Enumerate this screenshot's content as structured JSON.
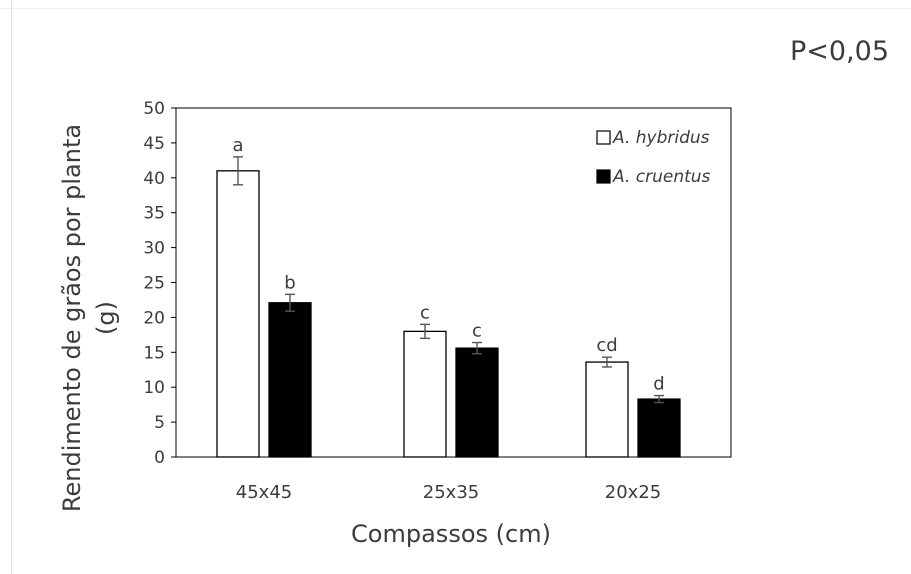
{
  "significance": "P<0,05",
  "chart_data": {
    "type": "bar",
    "title": "",
    "xlabel": "Compassos (cm)",
    "ylabel": "Rendimento de grãos por planta (g)",
    "ylabel_lines": [
      "Rendimento de grãos por planta",
      "(g)"
    ],
    "categories": [
      "45x45",
      "25x35",
      "20x25"
    ],
    "ylim": [
      0,
      50
    ],
    "yticks": [
      0,
      5,
      10,
      15,
      20,
      25,
      30,
      35,
      40,
      45,
      50
    ],
    "grid": false,
    "legend_position": "top-right",
    "series": [
      {
        "name": "A. hybridus",
        "fill": "#ffffff",
        "values": [
          41.0,
          18.0,
          13.6
        ],
        "errors": [
          2.0,
          1.0,
          0.7
        ],
        "labels": [
          "a",
          "c",
          "cd"
        ]
      },
      {
        "name": "A. cruentus",
        "fill": "#000000",
        "values": [
          22.1,
          15.6,
          8.3
        ],
        "errors": [
          1.2,
          0.8,
          0.5
        ],
        "labels": [
          "b",
          "c",
          "d"
        ]
      }
    ]
  }
}
